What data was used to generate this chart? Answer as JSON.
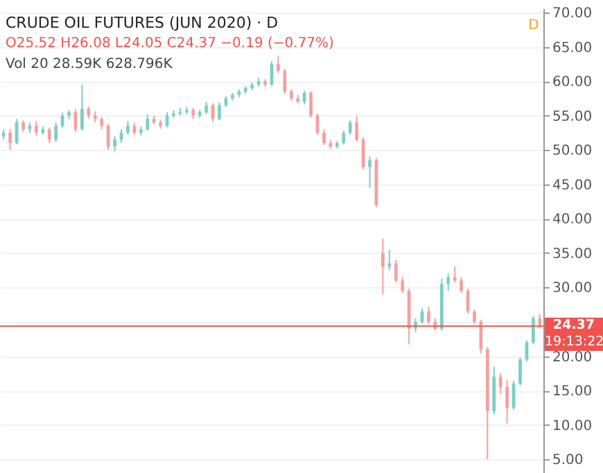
{
  "chart_data": {
    "type": "candlestick",
    "title": "CRUDE OIL FUTURES (JUN 2020) · D",
    "subtitle": "O25.52 H26.08 L24.05 C24.37 −0.19 (−0.77%)",
    "annotations": [
      "Vol 20  28.59K  628.796K",
      "D",
      "19:13:22"
    ],
    "categories": [
      null,
      null,
      null,
      null,
      null,
      null,
      null,
      null,
      null,
      null,
      null,
      null,
      null,
      null,
      null,
      null,
      null,
      null,
      null,
      null,
      null,
      null,
      null,
      null,
      null,
      null,
      null,
      null,
      null,
      null,
      null,
      null,
      null,
      null,
      null,
      null,
      null,
      null,
      null,
      null,
      null,
      null,
      null,
      null,
      null,
      null,
      null,
      null,
      null,
      null,
      null,
      null,
      null,
      null,
      null,
      null,
      null,
      null,
      null,
      null,
      null,
      null,
      null,
      null,
      null,
      null,
      null,
      null,
      null,
      null,
      null,
      null,
      null,
      null,
      null,
      null,
      null,
      null,
      null,
      null,
      null,
      null,
      null
    ],
    "ohlc": [
      [
        52.0,
        53.0,
        51.5,
        52.5
      ],
      [
        52.5,
        53.0,
        50.0,
        51.0
      ],
      [
        51.0,
        54.5,
        50.8,
        54.0
      ],
      [
        54.0,
        54.3,
        52.6,
        53.0
      ],
      [
        53.0,
        54.0,
        52.5,
        53.5
      ],
      [
        53.5,
        54.2,
        52.0,
        52.5
      ],
      [
        52.5,
        53.4,
        52.2,
        53.0
      ],
      [
        53.0,
        53.2,
        51.0,
        51.5
      ],
      [
        51.5,
        54.0,
        51.2,
        53.5
      ],
      [
        53.5,
        55.4,
        53.2,
        55.0
      ],
      [
        55.0,
        55.8,
        54.5,
        55.5
      ],
      [
        55.5,
        55.9,
        52.6,
        53.0
      ],
      [
        53.0,
        59.5,
        52.8,
        56.0
      ],
      [
        56.0,
        56.3,
        54.6,
        55.0
      ],
      [
        55.0,
        55.6,
        54.0,
        54.5
      ],
      [
        54.5,
        54.8,
        53.0,
        53.5
      ],
      [
        53.5,
        53.8,
        50.0,
        50.5
      ],
      [
        50.5,
        52.0,
        49.8,
        51.5
      ],
      [
        51.5,
        53.0,
        51.0,
        52.5
      ],
      [
        52.5,
        54.2,
        52.2,
        53.5
      ],
      [
        53.5,
        53.9,
        52.2,
        52.5
      ],
      [
        52.5,
        53.4,
        52.1,
        53.0
      ],
      [
        53.0,
        55.2,
        52.8,
        54.5
      ],
      [
        54.5,
        55.0,
        53.7,
        54.0
      ],
      [
        54.0,
        54.4,
        53.1,
        53.5
      ],
      [
        53.5,
        55.5,
        53.3,
        55.0
      ],
      [
        55.0,
        55.8,
        54.7,
        55.3
      ],
      [
        55.3,
        56.1,
        55.0,
        55.5
      ],
      [
        55.5,
        56.3,
        55.2,
        55.8
      ],
      [
        55.8,
        56.1,
        54.5,
        55.0
      ],
      [
        55.0,
        55.8,
        54.7,
        55.5
      ],
      [
        55.5,
        57.0,
        55.2,
        56.5
      ],
      [
        56.5,
        56.8,
        54.1,
        54.5
      ],
      [
        54.5,
        56.9,
        54.3,
        56.5
      ],
      [
        56.5,
        57.8,
        56.2,
        57.5
      ],
      [
        57.5,
        58.3,
        57.2,
        58.0
      ],
      [
        58.0,
        58.8,
        57.7,
        58.5
      ],
      [
        58.5,
        59.3,
        58.2,
        59.0
      ],
      [
        59.0,
        59.8,
        58.7,
        59.5
      ],
      [
        59.5,
        60.5,
        59.2,
        60.0
      ],
      [
        60.0,
        60.3,
        59.2,
        59.5
      ],
      [
        59.5,
        62.9,
        59.3,
        62.5
      ],
      [
        62.5,
        63.7,
        61.2,
        61.5
      ],
      [
        61.5,
        61.8,
        58.2,
        58.5
      ],
      [
        58.5,
        58.8,
        57.2,
        57.5
      ],
      [
        57.5,
        58.0,
        56.8,
        57.0
      ],
      [
        57.0,
        58.6,
        56.6,
        58.3
      ],
      [
        58.3,
        58.5,
        54.7,
        55.0
      ],
      [
        55.0,
        55.3,
        52.2,
        52.5
      ],
      [
        52.5,
        53.0,
        50.7,
        51.0
      ],
      [
        51.0,
        51.4,
        50.2,
        50.5
      ],
      [
        50.5,
        51.3,
        50.2,
        51.0
      ],
      [
        51.0,
        52.8,
        50.8,
        52.5
      ],
      [
        52.5,
        54.3,
        52.2,
        54.0
      ],
      [
        54.0,
        54.9,
        51.2,
        51.5
      ],
      [
        51.5,
        51.8,
        47.2,
        47.5
      ],
      [
        47.5,
        49.0,
        44.5,
        48.5
      ],
      [
        48.5,
        48.8,
        41.7,
        42.0
      ],
      [
        35.0,
        37.1,
        29.0,
        33.0
      ],
      [
        33.0,
        35.5,
        32.5,
        33.5
      ],
      [
        33.5,
        34.0,
        30.7,
        31.0
      ],
      [
        31.0,
        31.5,
        29.2,
        29.5
      ],
      [
        29.5,
        29.8,
        21.7,
        24.0
      ],
      [
        24.0,
        25.5,
        23.5,
        25.0
      ],
      [
        25.0,
        27.0,
        24.7,
        26.5
      ],
      [
        26.5,
        27.2,
        24.7,
        25.0
      ],
      [
        25.0,
        25.5,
        23.7,
        24.0
      ],
      [
        24.0,
        31.3,
        23.7,
        30.5
      ],
      [
        30.5,
        32.0,
        29.5,
        31.5
      ],
      [
        31.5,
        33.1,
        30.7,
        31.0
      ],
      [
        31.0,
        31.5,
        29.2,
        29.5
      ],
      [
        29.5,
        29.8,
        26.2,
        26.5
      ],
      [
        26.5,
        26.8,
        24.7,
        25.0
      ],
      [
        25.0,
        25.3,
        20.4,
        21.0
      ],
      [
        21.0,
        21.3,
        5.0,
        12.0
      ],
      [
        12.0,
        18.5,
        11.5,
        17.0
      ],
      [
        17.0,
        17.5,
        14.5,
        15.5
      ],
      [
        15.5,
        16.5,
        10.2,
        12.5
      ],
      [
        12.5,
        16.4,
        12.2,
        16.0
      ],
      [
        16.0,
        19.8,
        15.7,
        19.5
      ],
      [
        19.5,
        22.3,
        19.2,
        22.0
      ],
      [
        22.0,
        25.8,
        21.7,
        25.5
      ],
      [
        25.52,
        26.08,
        24.05,
        24.37
      ]
    ],
    "colors": [
      "#7ccfc3",
      "#f5a0a0",
      "#7ccfc3",
      "#f5a0a0",
      "#7ccfc3",
      "#f5a0a0",
      "#7ccfc3",
      "#f5a0a0",
      "#7ccfc3",
      "#7ccfc3",
      "#7ccfc3",
      "#f5a0a0",
      "#7ccfc3",
      "#f5a0a0",
      "#f5a0a0",
      "#f5a0a0",
      "#f5a0a0",
      "#7ccfc3",
      "#7ccfc3",
      "#7ccfc3",
      "#f5a0a0",
      "#7ccfc3",
      "#7ccfc3",
      "#f5a0a0",
      "#f5a0a0",
      "#7ccfc3",
      "#7ccfc3",
      "#7ccfc3",
      "#7ccfc3",
      "#f5a0a0",
      "#7ccfc3",
      "#7ccfc3",
      "#f5a0a0",
      "#7ccfc3",
      "#7ccfc3",
      "#7ccfc3",
      "#7ccfc3",
      "#7ccfc3",
      "#7ccfc3",
      "#7ccfc3",
      "#f5a0a0",
      "#7ccfc3",
      "#f5a0a0",
      "#f5a0a0",
      "#f5a0a0",
      "#f5a0a0",
      "#7ccfc3",
      "#f5a0a0",
      "#f5a0a0",
      "#f5a0a0",
      "#f5a0a0",
      "#7ccfc3",
      "#7ccfc3",
      "#7ccfc3",
      "#f5a0a0",
      "#f5a0a0",
      "#7ccfc3",
      "#f5a0a0",
      "#f5a0a0",
      "#7ccfc3",
      "#f5a0a0",
      "#f5a0a0",
      "#f5a0a0",
      "#7ccfc3",
      "#7ccfc3",
      "#f5a0a0",
      "#f5a0a0",
      "#7ccfc3",
      "#7ccfc3",
      "#f5a0a0",
      "#f5a0a0",
      "#f5a0a0",
      "#f5a0a0",
      "#f5a0a0",
      "#f5a0a0",
      "#7ccfc3",
      "#f5a0a0",
      "#f5a0a0",
      "#7ccfc3",
      "#7ccfc3",
      "#7ccfc3",
      "#7ccfc3",
      "#f5a0a0"
    ],
    "ylim": [
      3.0,
      70.6
    ],
    "yticks": [
      {
        "value": 5,
        "label": "5.00"
      },
      {
        "value": 10,
        "label": "10.00"
      },
      {
        "value": 15,
        "label": "15.00"
      },
      {
        "value": 20,
        "label": "20.00"
      },
      {
        "value": 25,
        "label": null
      },
      {
        "value": 30,
        "label": "30.00"
      },
      {
        "value": 35,
        "label": "35.00"
      },
      {
        "value": 40,
        "label": "40.00"
      },
      {
        "value": 45,
        "label": "45.00"
      },
      {
        "value": 50,
        "label": "50.00"
      },
      {
        "value": 55,
        "label": "55.00"
      },
      {
        "value": 60,
        "label": "60.00"
      },
      {
        "value": 65,
        "label": "65.00"
      },
      {
        "value": 70,
        "label": "70.00"
      }
    ],
    "ref_lines": [
      {
        "axis": "y",
        "value": 24.37,
        "label": "24.37",
        "color": "#ef5350"
      }
    ],
    "grid": "y",
    "tick_labels": "y"
  }
}
